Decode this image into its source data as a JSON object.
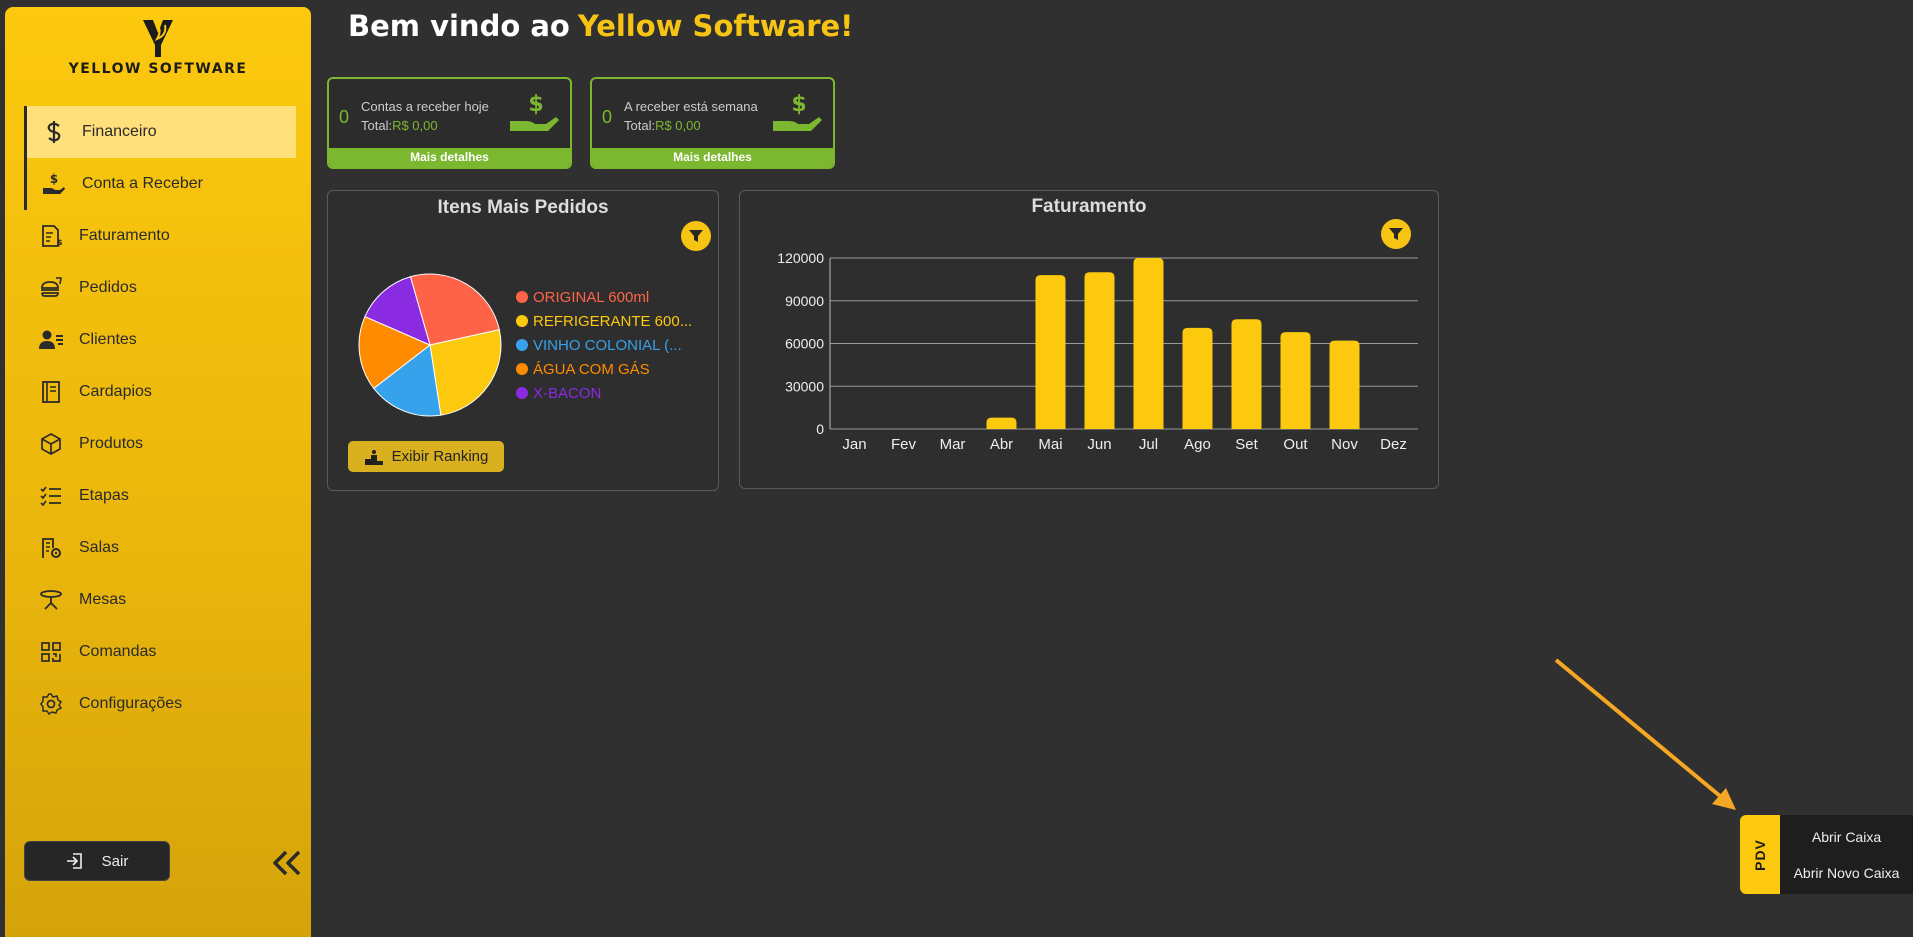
{
  "sidebar": {
    "logo_text": "YELLOW SOFTWARE",
    "items": [
      {
        "label": "Financeiro",
        "icon": "dollar-icon"
      },
      {
        "label": "Conta a Receber",
        "icon": "hand-dollar-icon"
      },
      {
        "label": "Faturamento",
        "icon": "invoice-icon"
      },
      {
        "label": "Pedidos",
        "icon": "food-icon"
      },
      {
        "label": "Clientes",
        "icon": "users-icon"
      },
      {
        "label": "Cardapios",
        "icon": "book-icon"
      },
      {
        "label": "Produtos",
        "icon": "box-icon"
      },
      {
        "label": "Etapas",
        "icon": "checklist-icon"
      },
      {
        "label": "Salas",
        "icon": "building-gear-icon"
      },
      {
        "label": "Mesas",
        "icon": "table-icon"
      },
      {
        "label": "Comandas",
        "icon": "qr-icon"
      },
      {
        "label": "Configurações",
        "icon": "gear-icon"
      }
    ],
    "logout_label": "Sair"
  },
  "header": {
    "welcome": "Bem vindo ao",
    "brand": "Yellow Software!"
  },
  "cards": [
    {
      "count": "0",
      "label": "Contas a receber hoje",
      "total_label": "Total:",
      "total_value": "R$ 0,00",
      "more": "Mais detalhes"
    },
    {
      "count": "0",
      "label": "A receber está semana",
      "total_label": "Total:",
      "total_value": "R$ 0,00",
      "more": "Mais detalhes"
    }
  ],
  "pie_panel": {
    "title": "Itens Mais Pedidos",
    "ranking_label": "Exibir Ranking"
  },
  "bar_panel": {
    "title": "Faturamento"
  },
  "chart_data": [
    {
      "type": "pie",
      "title": "Itens Mais Pedidos",
      "labels": [
        "ORIGINAL 600ml",
        "REFRIGERANTE 600...",
        "VINHO COLONIAL (...",
        "ÁGUA COM GÁS",
        "X-BACON"
      ],
      "values": [
        26,
        26,
        17,
        17,
        14
      ],
      "colors": [
        "#ff6347",
        "#fcc90e",
        "#36a2eb",
        "#ff8c00",
        "#8a2be2"
      ]
    },
    {
      "type": "bar",
      "title": "Faturamento",
      "categories": [
        "Jan",
        "Fev",
        "Mar",
        "Abr",
        "Mai",
        "Jun",
        "Jul",
        "Ago",
        "Set",
        "Out",
        "Nov",
        "Dez"
      ],
      "values": [
        0,
        0,
        0,
        8000,
        108000,
        110000,
        120000,
        71000,
        77000,
        68000,
        62000,
        0
      ],
      "yticks": [
        "0",
        "30000",
        "60000",
        "90000",
        "120000"
      ],
      "ylim": [
        0,
        120000
      ],
      "color": "#fcc90e",
      "grid": true
    }
  ],
  "pdv": {
    "tab": "PDV",
    "open": "Abrir Caixa",
    "open_new": "Abrir Novo Caixa"
  }
}
